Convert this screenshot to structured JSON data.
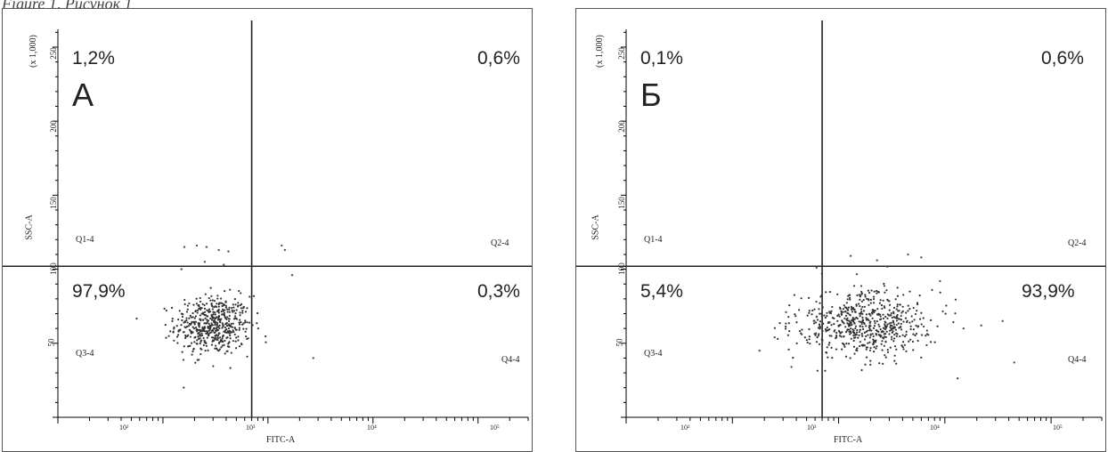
{
  "caption": "Figure 1 / Рисунок 1",
  "chart_data": [
    {
      "type": "scatter",
      "panel_letter": "А",
      "xlabel": "FITC-A",
      "ylabel": "SSC-A",
      "y_multiplier": "(x 1,000)",
      "x_scale": "log",
      "xlim": [
        10,
        300000
      ],
      "ylim": [
        0,
        262
      ],
      "x_tick_labels": [
        "10²",
        "10³",
        "10⁴",
        "10⁵"
      ],
      "y_tick_labels": [
        "50",
        "100",
        "150",
        "200",
        "250"
      ],
      "gate_x": 700,
      "gate_y": 102,
      "quadrants": [
        {
          "name": "Q1-4",
          "percent": "1,2%"
        },
        {
          "name": "Q2-4",
          "percent": "0,6%"
        },
        {
          "name": "Q3-4",
          "percent": "97,9%"
        },
        {
          "name": "Q4-4",
          "percent": "0,3%"
        }
      ],
      "cluster": {
        "center_x": 300,
        "center_y": 62,
        "spread_log_x": 0.18,
        "spread_y": 10,
        "count": 520
      }
    },
    {
      "type": "scatter",
      "panel_letter": "Б",
      "xlabel": "FITC-A",
      "ylabel": "SSC-A",
      "y_multiplier": "(x 1,000)",
      "x_scale": "log",
      "xlim": [
        10,
        300000
      ],
      "ylim": [
        0,
        262
      ],
      "x_tick_labels": [
        "10²",
        "10³",
        "10⁴",
        "10⁵"
      ],
      "y_tick_labels": [
        "50",
        "100",
        "150",
        "200",
        "250"
      ],
      "gate_x": 700,
      "gate_y": 102,
      "quadrants": [
        {
          "name": "Q1-4",
          "percent": "0,1%"
        },
        {
          "name": "Q2-4",
          "percent": "0,6%"
        },
        {
          "name": "Q3-4",
          "percent": "5,4%"
        },
        {
          "name": "Q4-4",
          "percent": "93,9%"
        }
      ],
      "cluster": {
        "center_x": 1800,
        "center_y": 63,
        "spread_log_x": 0.32,
        "spread_y": 11,
        "count": 620
      }
    }
  ]
}
